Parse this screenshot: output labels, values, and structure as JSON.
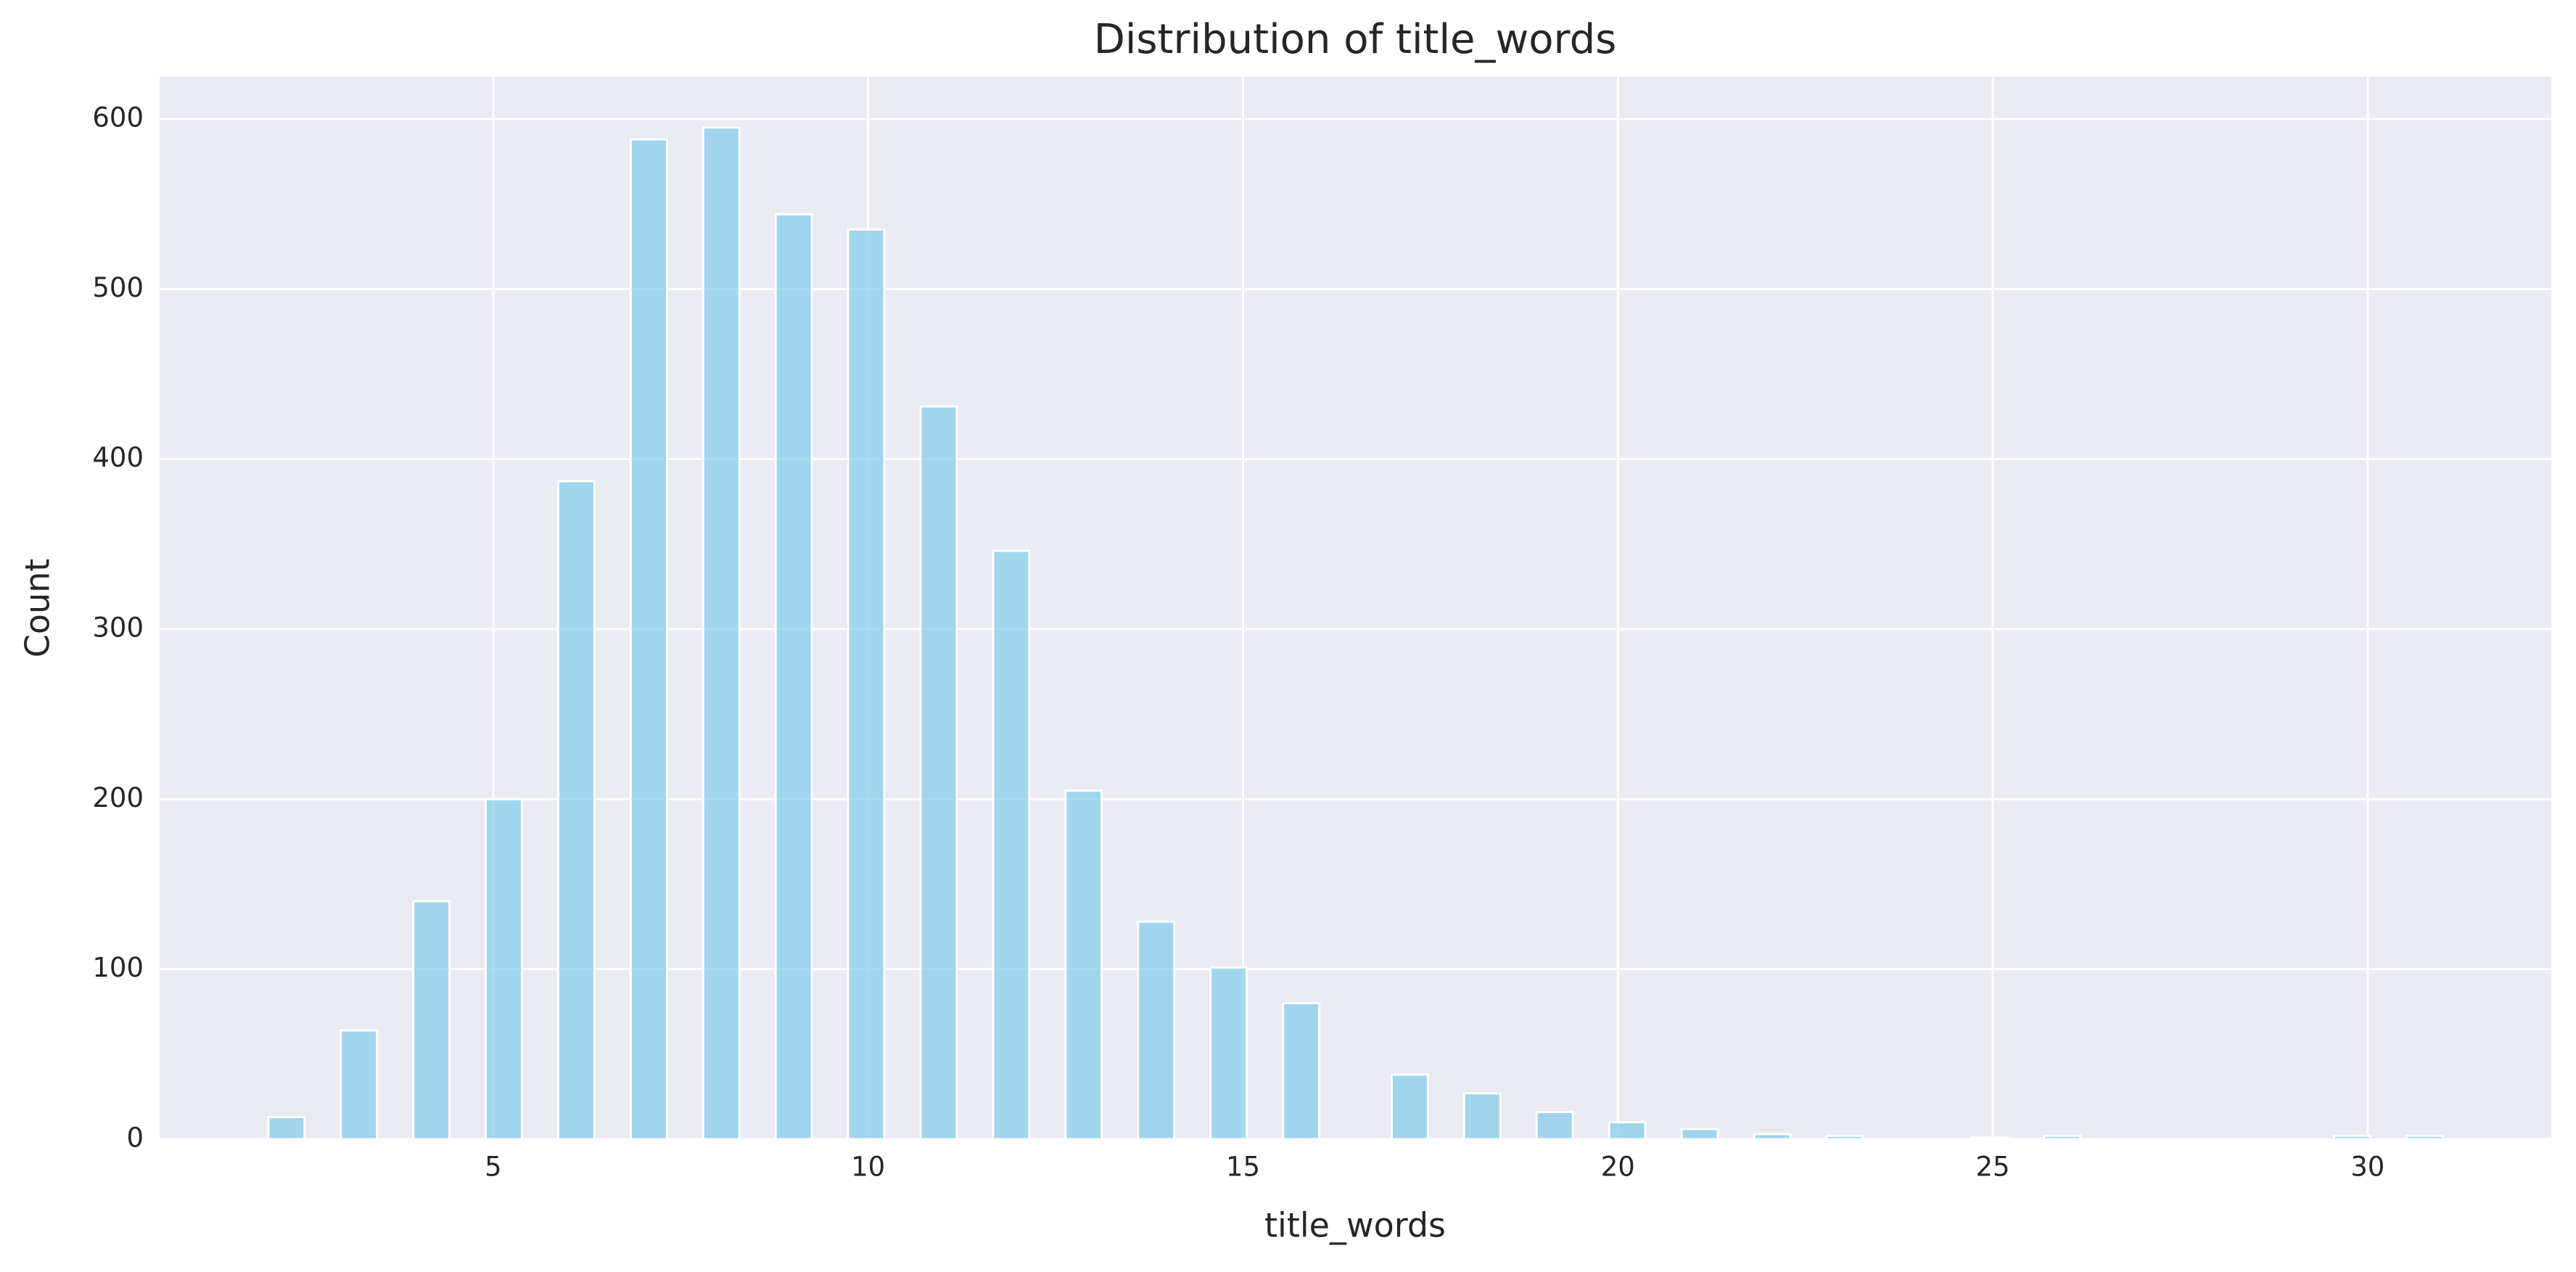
{
  "chart_data": {
    "type": "histogram",
    "title": "Distribution of title_words",
    "xlabel": "title_words",
    "ylabel": "Count",
    "bins": [
      2,
      2.4833,
      2.9667,
      3.45,
      3.9333,
      4.4167,
      4.9,
      5.3833,
      5.8667,
      6.35,
      6.8333,
      7.3167,
      7.8,
      8.2833,
      8.7667,
      9.25,
      9.7333,
      10.2167,
      10.7,
      11.1833,
      11.6667,
      12.15,
      12.6333,
      13.1167,
      13.6,
      14.0833,
      14.5667,
      15.05,
      15.5333,
      16.0167,
      16.5,
      16.9833,
      17.4667,
      17.95,
      18.4333,
      18.9167,
      19.4,
      19.8833,
      20.3667,
      20.85,
      21.3333,
      21.8167,
      22.3,
      22.7833,
      23.2667,
      23.75,
      24.2333,
      24.7167,
      25.2,
      25.6833,
      26.1667,
      26.65,
      27.1333,
      27.6167,
      28.1,
      28.5833,
      29.0667,
      29.55,
      30.0333,
      30.5167,
      31
    ],
    "counts": [
      13,
      0,
      64,
      0,
      140,
      0,
      200,
      0,
      387,
      0,
      588,
      0,
      595,
      0,
      544,
      0,
      535,
      0,
      431,
      0,
      346,
      0,
      205,
      0,
      128,
      0,
      101,
      0,
      80,
      0,
      0,
      38,
      0,
      27,
      0,
      16,
      0,
      10,
      0,
      6,
      0,
      3,
      0,
      2,
      0,
      0,
      0,
      1,
      0,
      2,
      0,
      0,
      0,
      0,
      0,
      0,
      0,
      2,
      0,
      2
    ],
    "color": "#87ceeb",
    "xlim": [
      0.55,
      32.45
    ],
    "xticks": [
      5,
      10,
      15,
      20,
      25,
      30
    ],
    "ylim": [
      0,
      624.75
    ],
    "yticks": [
      0,
      100,
      200,
      300,
      400,
      500,
      600
    ],
    "grid": true
  }
}
